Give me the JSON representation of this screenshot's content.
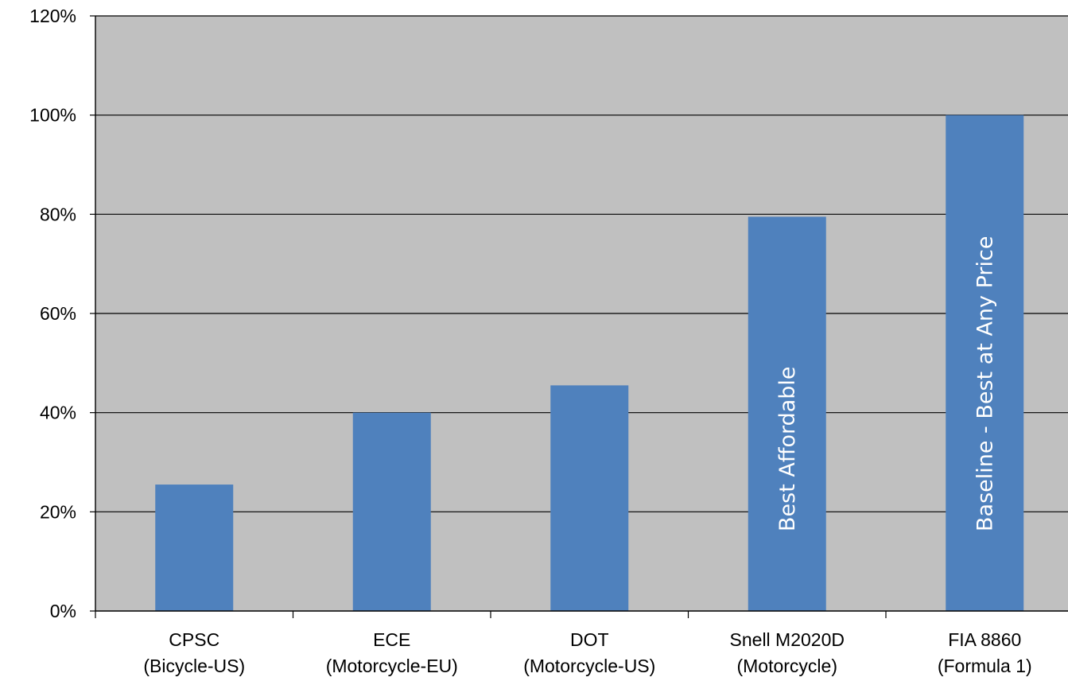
{
  "chart_data": {
    "type": "bar",
    "categories": [
      [
        "CPSC",
        "(Bicycle-US)"
      ],
      [
        "ECE",
        "(Motorcycle-EU)"
      ],
      [
        "DOT",
        "(Motorcycle-US)"
      ],
      [
        "Snell M2020D",
        "(Motorcycle)"
      ],
      [
        "FIA 8860",
        "(Formula 1)"
      ]
    ],
    "values": [
      25.5,
      40,
      45.5,
      79.5,
      100
    ],
    "bar_annotations": [
      "",
      "",
      "",
      "Best Affordable",
      "Baseline - Best at Any Price"
    ],
    "title": "",
    "xlabel": "",
    "ylabel": "",
    "ylim": [
      0,
      120
    ],
    "ytick_step": 20,
    "ytick_format": "percent",
    "grid": true,
    "legend": "none",
    "colors": {
      "bar": "#4f81bd",
      "plot_background": "#c0c0c0",
      "gridline": "#000000",
      "axis": "#000000",
      "annotation_text": "#ffffff"
    }
  }
}
